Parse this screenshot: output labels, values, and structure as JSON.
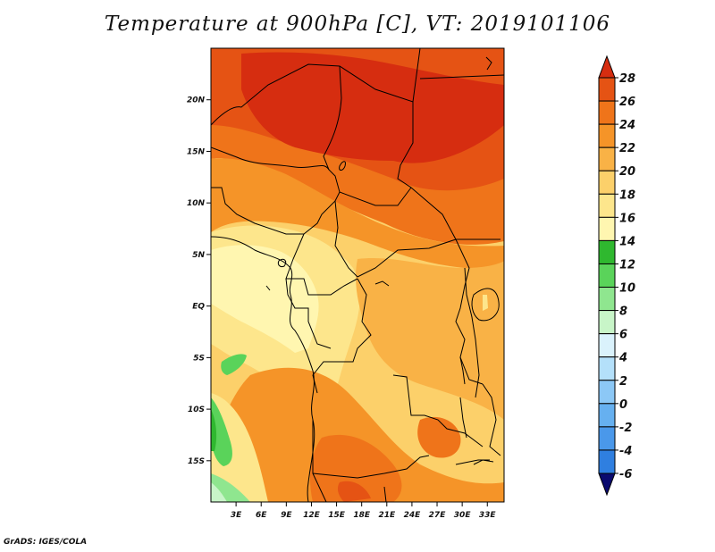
{
  "title": "Temperature at 900hPa [C], VT: 2019101106",
  "credit": "GrADS: IGES/COLA",
  "map": {
    "lat_labels": [
      "20N",
      "15N",
      "10N",
      "5N",
      "EQ",
      "5S",
      "10S",
      "15S"
    ],
    "lat_values": [
      20,
      15,
      10,
      5,
      0,
      -5,
      -10,
      -15
    ],
    "lon_labels": [
      "3E",
      "6E",
      "9E",
      "12E",
      "15E",
      "18E",
      "21E",
      "24E",
      "27E",
      "30E",
      "33E"
    ],
    "lon_values": [
      3,
      6,
      9,
      12,
      15,
      18,
      21,
      24,
      27,
      30,
      33
    ],
    "lon_range": [
      0,
      35
    ],
    "lat_range": [
      -19,
      25
    ]
  },
  "colorbar": {
    "labels": [
      "28",
      "26",
      "24",
      "22",
      "20",
      "18",
      "16",
      "14",
      "12",
      "10",
      "8",
      "6",
      "4",
      "2",
      "0",
      "-2",
      "-4",
      "-6"
    ],
    "colors": [
      "#0a0a6e",
      "#1238a8",
      "#1e5ed0",
      "#2f7fe0",
      "#4a98ea",
      "#66b0f0",
      "#8cc8f6",
      "#b4e0fa",
      "#daf2fc",
      "#c8f5c8",
      "#8fe68f",
      "#5ad35a",
      "#2fb82f",
      "#fff6b0",
      "#fde68c",
      "#fcd06a",
      "#f9b246",
      "#f59428",
      "#ef741a",
      "#e55314",
      "#d62d10"
    ]
  }
}
